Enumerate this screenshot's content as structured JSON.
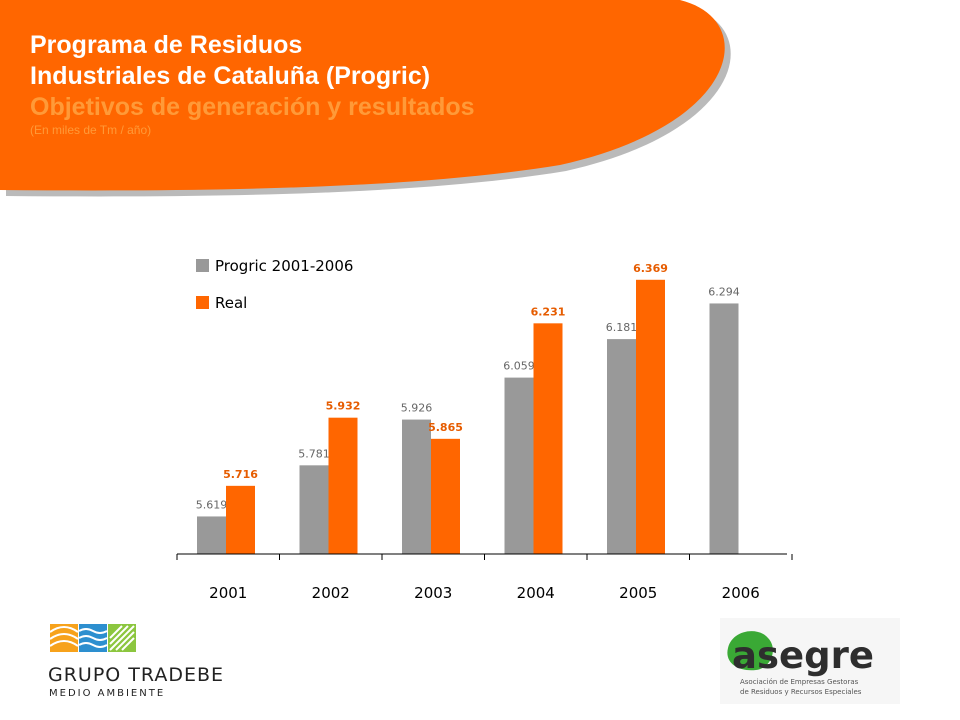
{
  "header": {
    "title_line1": "Programa de Residuos",
    "title_line2": "Industriales de Cataluña (Progric)",
    "subtitle": "Objetivos de generación y resultados",
    "units": "(En miles de Tm / año)"
  },
  "colors": {
    "banner": "#ff6600",
    "progric": "#999999",
    "real": "#ff6600",
    "real_label": "#e65c00"
  },
  "chart_data": {
    "type": "bar",
    "categories": [
      "2001",
      "2002",
      "2003",
      "2004",
      "2005",
      "2006"
    ],
    "series": [
      {
        "name": "Progric 2001-2006",
        "values": [
          5.619,
          5.781,
          5.926,
          6.059,
          6.181,
          6.294
        ],
        "labels": [
          "5.619",
          "5.781",
          "5.926",
          "6.059",
          "6.181",
          "6.294"
        ]
      },
      {
        "name": "Real",
        "values": [
          5.716,
          5.932,
          5.865,
          6.231,
          6.369,
          null
        ],
        "labels": [
          "5.716",
          "5.932",
          "5.865",
          "6.231",
          "6.369",
          ""
        ]
      }
    ],
    "legend_position": "top-left",
    "ylim": [
      5.5,
      6.4
    ],
    "grid": false
  },
  "logos": {
    "tradebe": {
      "name": "GRUPO TRADEBE",
      "tagline": "MEDIO AMBIENTE",
      "icon": "waves-leaf-icon"
    },
    "asegre": {
      "name": "asegre",
      "desc_line1": "Asociación de Empresas Gestoras",
      "desc_line2": "de Residuos y Recursos Especiales"
    }
  }
}
